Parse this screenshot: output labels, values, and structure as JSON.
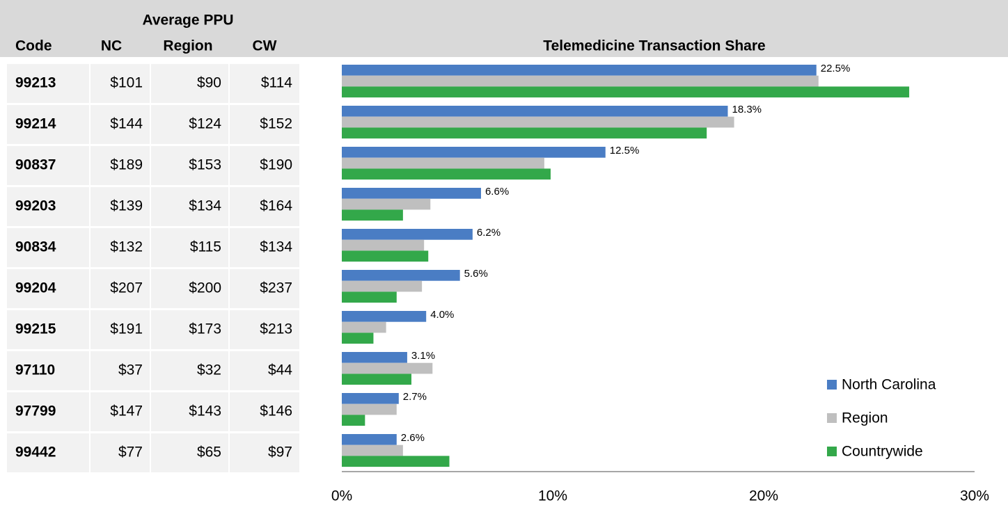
{
  "table": {
    "group_header": "Average PPU",
    "columns": [
      "Code",
      "NC",
      "Region",
      "CW"
    ],
    "rows": [
      [
        "$101",
        "$90",
        "$114"
      ],
      [
        "$144",
        "$124",
        "$152"
      ],
      [
        "$189",
        "$153",
        "$190"
      ],
      [
        "$139",
        "$134",
        "$164"
      ],
      [
        "$132",
        "$115",
        "$134"
      ],
      [
        "$207",
        "$200",
        "$237"
      ],
      [
        "$191",
        "$173",
        "$213"
      ],
      [
        "$37",
        "$32",
        "$44"
      ],
      [
        "$147",
        "$143",
        "$146"
      ],
      [
        "$77",
        "$65",
        "$97"
      ]
    ]
  },
  "chart_data": {
    "type": "hbar",
    "title": "Telemedicine Transaction Share",
    "categories": [
      "99213",
      "99214",
      "90837",
      "99203",
      "90834",
      "99204",
      "99215",
      "97110",
      "97799",
      "99442"
    ],
    "series": [
      {
        "name": "North Carolina",
        "color": "#4a7dc4",
        "values": [
          22.5,
          18.3,
          12.5,
          6.6,
          6.2,
          5.6,
          4.0,
          3.1,
          2.7,
          2.6
        ],
        "value_labels": [
          "22.5%",
          "18.3%",
          "12.5%",
          "6.6%",
          "6.2%",
          "5.6%",
          "4.0%",
          "3.1%",
          "2.7%",
          "2.6%"
        ]
      },
      {
        "name": "Region",
        "color": "#bfbfbf",
        "values": [
          22.6,
          18.6,
          9.6,
          4.2,
          3.9,
          3.8,
          2.1,
          4.3,
          2.6,
          2.9
        ]
      },
      {
        "name": "Countrywide",
        "color": "#33a84a",
        "values": [
          26.9,
          17.3,
          9.9,
          2.9,
          4.1,
          2.6,
          1.5,
          3.3,
          1.1,
          5.1
        ]
      }
    ],
    "xlim": [
      0,
      30
    ],
    "xticks": [
      {
        "value": 0,
        "label": "0%"
      },
      {
        "value": 10,
        "label": "10%"
      },
      {
        "value": 20,
        "label": "20%"
      },
      {
        "value": 30,
        "label": "30%"
      }
    ],
    "legend": "bottom-right"
  }
}
